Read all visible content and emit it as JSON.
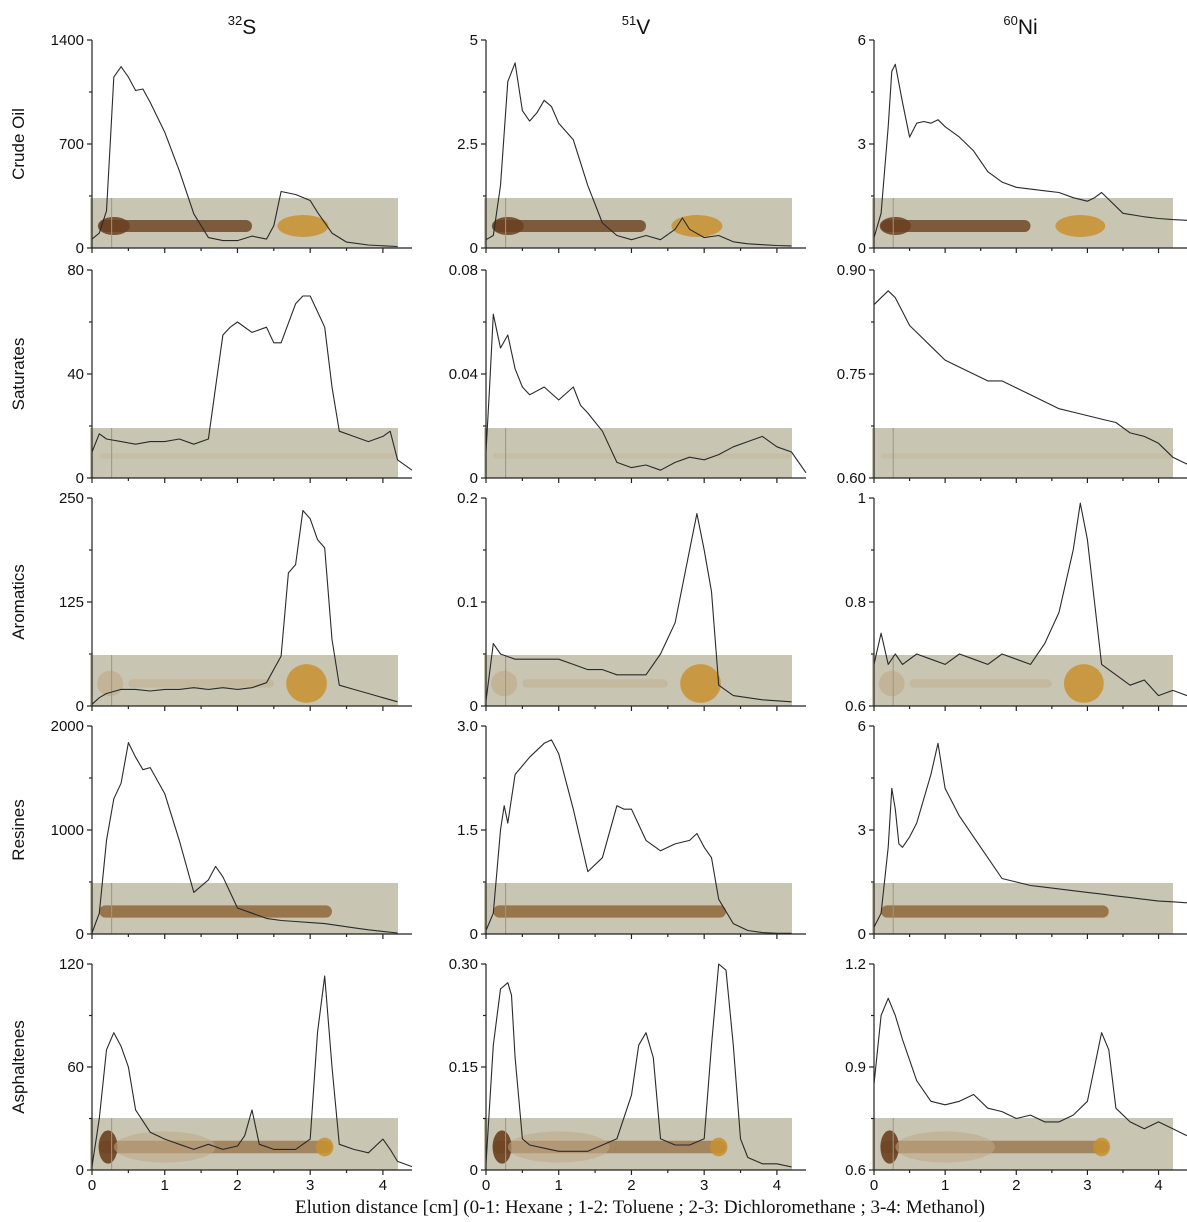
{
  "chart_data": {
    "type": "line",
    "layout": "grid 5 rows x 3 columns",
    "columns": [
      {
        "isotope_mass": "32",
        "element": "S"
      },
      {
        "isotope_mass": "51",
        "element": "V"
      },
      {
        "isotope_mass": "60",
        "element": "Ni"
      }
    ],
    "rows": [
      "Crude Oil",
      "Saturates",
      "Aromatics",
      "Resines",
      "Asphaltenes"
    ],
    "xlabel": "Elution distance [cm] (0-1: Hexane ; 1-2: Toluene ; 2-3: Dichloromethane ; 3-4: Methanol)",
    "xlim": [
      0,
      4.4
    ],
    "x_ticks": [
      "0",
      "1",
      "2",
      "3",
      "4"
    ],
    "panels": [
      {
        "row": 0,
        "col": 0,
        "ylim": [
          0,
          1400
        ],
        "y_ticks": [
          "0",
          "700",
          "1400"
        ],
        "x": [
          0,
          0.1,
          0.2,
          0.25,
          0.3,
          0.4,
          0.5,
          0.6,
          0.7,
          0.8,
          1.0,
          1.2,
          1.4,
          1.6,
          1.8,
          2.0,
          2.2,
          2.4,
          2.5,
          2.6,
          2.8,
          3.0,
          3.1,
          3.3,
          3.5,
          3.8,
          4.0,
          4.2
        ],
        "y": [
          60,
          100,
          250,
          700,
          1150,
          1220,
          1150,
          1060,
          1070,
          980,
          780,
          520,
          230,
          70,
          50,
          50,
          80,
          60,
          150,
          380,
          360,
          320,
          240,
          100,
          40,
          20,
          15,
          10
        ]
      },
      {
        "row": 0,
        "col": 1,
        "ylim": [
          0,
          5
        ],
        "y_ticks": [
          "0",
          "2.5",
          "5"
        ],
        "x": [
          0,
          0.1,
          0.2,
          0.3,
          0.4,
          0.5,
          0.6,
          0.7,
          0.8,
          0.9,
          1.0,
          1.2,
          1.4,
          1.6,
          1.8,
          2.0,
          2.2,
          2.4,
          2.6,
          2.7,
          2.8,
          3.0,
          3.2,
          3.4,
          3.6,
          3.8,
          4.0,
          4.2
        ],
        "y": [
          0.2,
          0.3,
          1.5,
          4.0,
          4.45,
          3.3,
          3.05,
          3.25,
          3.55,
          3.4,
          3.0,
          2.6,
          1.5,
          0.6,
          0.3,
          0.2,
          0.3,
          0.2,
          0.45,
          0.72,
          0.45,
          0.25,
          0.3,
          0.15,
          0.1,
          0.08,
          0.06,
          0.05
        ]
      },
      {
        "row": 0,
        "col": 2,
        "ylim": [
          0,
          6
        ],
        "y_ticks": [
          "0",
          "3",
          "6"
        ],
        "x": [
          0,
          0.1,
          0.2,
          0.25,
          0.3,
          0.4,
          0.5,
          0.6,
          0.7,
          0.8,
          0.9,
          1.0,
          1.2,
          1.4,
          1.6,
          1.8,
          2.0,
          2.2,
          2.4,
          2.6,
          2.8,
          3.0,
          3.1,
          3.2,
          3.3,
          3.5,
          3.8,
          4.0,
          4.2,
          4.4
        ],
        "y": [
          0.3,
          1.0,
          3.5,
          5.1,
          5.3,
          4.2,
          3.2,
          3.6,
          3.65,
          3.6,
          3.7,
          3.5,
          3.2,
          2.8,
          2.2,
          1.9,
          1.75,
          1.7,
          1.65,
          1.6,
          1.45,
          1.35,
          1.45,
          1.6,
          1.4,
          1.0,
          0.9,
          0.85,
          0.82,
          0.8
        ]
      },
      {
        "row": 1,
        "col": 0,
        "ylim": [
          0,
          80
        ],
        "y_ticks": [
          "0",
          "40",
          "80"
        ],
        "x": [
          0,
          0.1,
          0.2,
          0.4,
          0.6,
          0.8,
          1.0,
          1.2,
          1.4,
          1.6,
          1.7,
          1.8,
          1.9,
          2.0,
          2.2,
          2.4,
          2.5,
          2.6,
          2.8,
          2.9,
          3.0,
          3.1,
          3.2,
          3.3,
          3.4,
          3.6,
          3.8,
          4.0,
          4.1,
          4.2,
          4.4
        ],
        "y": [
          10,
          17,
          15,
          14,
          13,
          14,
          14,
          15,
          13,
          15,
          35,
          55,
          58,
          60,
          56,
          58,
          52,
          52,
          67,
          70,
          70,
          64,
          58,
          35,
          18,
          16,
          14,
          16,
          18,
          7,
          3
        ]
      },
      {
        "row": 1,
        "col": 1,
        "ylim": [
          0,
          0.08
        ],
        "y_ticks": [
          "0",
          "0.04",
          "0.08"
        ],
        "x": [
          0,
          0.05,
          0.1,
          0.2,
          0.3,
          0.4,
          0.5,
          0.6,
          0.8,
          1.0,
          1.2,
          1.3,
          1.4,
          1.6,
          1.8,
          2.0,
          2.2,
          2.4,
          2.6,
          2.8,
          3.0,
          3.2,
          3.4,
          3.6,
          3.8,
          4.0,
          4.2,
          4.4
        ],
        "y": [
          0.01,
          0.035,
          0.063,
          0.05,
          0.055,
          0.042,
          0.035,
          0.032,
          0.035,
          0.03,
          0.035,
          0.028,
          0.025,
          0.018,
          0.006,
          0.004,
          0.005,
          0.003,
          0.006,
          0.008,
          0.007,
          0.009,
          0.012,
          0.014,
          0.016,
          0.012,
          0.01,
          0.002
        ]
      },
      {
        "row": 1,
        "col": 2,
        "ylim": [
          0.6,
          0.9
        ],
        "y_ticks": [
          "0.60",
          "0.75",
          "0.90"
        ],
        "x": [
          0,
          0.1,
          0.2,
          0.3,
          0.4,
          0.5,
          0.6,
          0.8,
          1.0,
          1.2,
          1.4,
          1.6,
          1.8,
          2.0,
          2.2,
          2.4,
          2.6,
          2.8,
          3.0,
          3.2,
          3.4,
          3.6,
          3.8,
          4.0,
          4.2,
          4.4
        ],
        "y": [
          0.85,
          0.86,
          0.87,
          0.86,
          0.84,
          0.82,
          0.81,
          0.79,
          0.77,
          0.76,
          0.75,
          0.74,
          0.74,
          0.73,
          0.72,
          0.71,
          0.7,
          0.695,
          0.69,
          0.685,
          0.68,
          0.665,
          0.66,
          0.65,
          0.63,
          0.62
        ]
      },
      {
        "row": 2,
        "col": 0,
        "ylim": [
          0,
          250
        ],
        "y_ticks": [
          "0",
          "125",
          "250"
        ],
        "x": [
          0,
          0.1,
          0.2,
          0.4,
          0.6,
          0.8,
          1.0,
          1.2,
          1.4,
          1.6,
          1.8,
          2.0,
          2.2,
          2.4,
          2.6,
          2.7,
          2.8,
          2.9,
          3.0,
          3.1,
          3.2,
          3.3,
          3.4,
          3.6,
          3.8,
          4.0,
          4.2
        ],
        "y": [
          2,
          10,
          15,
          20,
          20,
          18,
          20,
          20,
          22,
          20,
          22,
          20,
          22,
          28,
          60,
          160,
          170,
          235,
          225,
          200,
          190,
          80,
          25,
          20,
          15,
          10,
          5
        ]
      },
      {
        "row": 2,
        "col": 1,
        "ylim": [
          0,
          0.2
        ],
        "y_ticks": [
          "0",
          "0.1",
          "0.2"
        ],
        "x": [
          0,
          0.1,
          0.2,
          0.4,
          0.6,
          0.8,
          1.0,
          1.2,
          1.4,
          1.6,
          1.8,
          2.0,
          2.2,
          2.4,
          2.6,
          2.8,
          2.9,
          3.0,
          3.1,
          3.2,
          3.4,
          3.6,
          3.8,
          4.0,
          4.2
        ],
        "y": [
          0.005,
          0.06,
          0.05,
          0.045,
          0.045,
          0.045,
          0.045,
          0.04,
          0.035,
          0.035,
          0.03,
          0.03,
          0.03,
          0.05,
          0.08,
          0.15,
          0.185,
          0.15,
          0.11,
          0.02,
          0.01,
          0.008,
          0.006,
          0.005,
          0.004
        ]
      },
      {
        "row": 2,
        "col": 2,
        "ylim": [
          0.6,
          1.0
        ],
        "y_ticks": [
          "0.6",
          "0.8",
          "1"
        ],
        "x": [
          0,
          0.1,
          0.2,
          0.3,
          0.4,
          0.6,
          0.8,
          1.0,
          1.2,
          1.4,
          1.6,
          1.8,
          2.0,
          2.2,
          2.4,
          2.6,
          2.8,
          2.9,
          3.0,
          3.1,
          3.2,
          3.4,
          3.6,
          3.8,
          4.0,
          4.2,
          4.4
        ],
        "y": [
          0.68,
          0.74,
          0.68,
          0.7,
          0.68,
          0.7,
          0.69,
          0.68,
          0.7,
          0.69,
          0.68,
          0.7,
          0.69,
          0.68,
          0.72,
          0.78,
          0.9,
          0.99,
          0.92,
          0.8,
          0.68,
          0.66,
          0.64,
          0.65,
          0.62,
          0.63,
          0.62
        ]
      },
      {
        "row": 3,
        "col": 0,
        "ylim": [
          0,
          2000
        ],
        "y_ticks": [
          "0",
          "1000",
          "2000"
        ],
        "x": [
          0,
          0.1,
          0.2,
          0.3,
          0.4,
          0.5,
          0.6,
          0.7,
          0.8,
          1.0,
          1.2,
          1.4,
          1.6,
          1.7,
          1.8,
          2.0,
          2.2,
          2.4,
          2.6,
          2.8,
          3.0,
          3.2,
          3.4,
          3.6,
          3.8,
          4.0,
          4.2
        ],
        "y": [
          10,
          200,
          900,
          1300,
          1450,
          1840,
          1700,
          1580,
          1600,
          1350,
          900,
          400,
          520,
          650,
          550,
          250,
          200,
          150,
          130,
          120,
          110,
          100,
          80,
          60,
          40,
          25,
          10
        ]
      },
      {
        "row": 3,
        "col": 1,
        "ylim": [
          0,
          3
        ],
        "y_ticks": [
          "0",
          "1.5",
          "3.0"
        ],
        "x": [
          0,
          0.1,
          0.2,
          0.25,
          0.3,
          0.4,
          0.6,
          0.8,
          0.9,
          1.0,
          1.2,
          1.4,
          1.6,
          1.8,
          1.9,
          2.0,
          2.2,
          2.4,
          2.6,
          2.8,
          2.9,
          3.0,
          3.1,
          3.2,
          3.4,
          3.6,
          3.8,
          4.0,
          4.2
        ],
        "y": [
          0.05,
          0.3,
          1.5,
          1.85,
          1.6,
          2.3,
          2.55,
          2.75,
          2.8,
          2.6,
          1.8,
          0.9,
          1.1,
          1.85,
          1.8,
          1.8,
          1.35,
          1.2,
          1.3,
          1.35,
          1.45,
          1.25,
          1.1,
          0.5,
          0.15,
          0.05,
          0.02,
          0.01,
          0.01
        ]
      },
      {
        "row": 3,
        "col": 2,
        "ylim": [
          0,
          6
        ],
        "y_ticks": [
          "0",
          "3",
          "6"
        ],
        "x": [
          0,
          0.1,
          0.2,
          0.25,
          0.3,
          0.35,
          0.4,
          0.5,
          0.6,
          0.8,
          0.9,
          1.0,
          1.2,
          1.4,
          1.6,
          1.8,
          2.0,
          2.2,
          2.4,
          2.6,
          2.8,
          3.0,
          3.2,
          3.4,
          3.6,
          3.8,
          4.0,
          4.2,
          4.4
        ],
        "y": [
          0.2,
          0.6,
          2.5,
          4.2,
          3.6,
          2.6,
          2.5,
          2.8,
          3.2,
          4.6,
          5.5,
          4.2,
          3.4,
          2.8,
          2.2,
          1.6,
          1.5,
          1.4,
          1.35,
          1.3,
          1.25,
          1.2,
          1.15,
          1.1,
          1.05,
          1.0,
          0.95,
          0.93,
          0.9
        ]
      },
      {
        "row": 4,
        "col": 0,
        "ylim": [
          0,
          120
        ],
        "y_ticks": [
          "0",
          "60",
          "120"
        ],
        "x": [
          0,
          0.1,
          0.2,
          0.3,
          0.4,
          0.5,
          0.6,
          0.8,
          1.0,
          1.2,
          1.4,
          1.6,
          1.8,
          2.0,
          2.1,
          2.2,
          2.3,
          2.5,
          2.8,
          3.0,
          3.1,
          3.2,
          3.3,
          3.4,
          3.6,
          3.8,
          4.0,
          4.1,
          4.2,
          4.4
        ],
        "y": [
          2,
          30,
          70,
          80,
          72,
          60,
          35,
          22,
          18,
          15,
          12,
          15,
          12,
          14,
          20,
          35,
          15,
          12,
          12,
          18,
          80,
          113,
          60,
          15,
          12,
          10,
          18,
          12,
          5,
          2
        ]
      },
      {
        "row": 4,
        "col": 1,
        "ylim": [
          0,
          0.33
        ],
        "y_ticks": [
          "0",
          "0.15",
          "0.30"
        ],
        "x": [
          0,
          0.1,
          0.2,
          0.3,
          0.35,
          0.4,
          0.5,
          0.6,
          0.8,
          1.0,
          1.2,
          1.4,
          1.6,
          1.8,
          2.0,
          2.1,
          2.2,
          2.3,
          2.4,
          2.6,
          2.8,
          3.0,
          3.1,
          3.2,
          3.3,
          3.4,
          3.5,
          3.6,
          3.8,
          4.0,
          4.2
        ],
        "y": [
          0.01,
          0.2,
          0.29,
          0.3,
          0.28,
          0.18,
          0.05,
          0.04,
          0.035,
          0.03,
          0.03,
          0.03,
          0.04,
          0.05,
          0.12,
          0.2,
          0.22,
          0.18,
          0.05,
          0.04,
          0.04,
          0.05,
          0.2,
          0.33,
          0.32,
          0.2,
          0.05,
          0.02,
          0.01,
          0.01,
          0.005
        ]
      },
      {
        "row": 4,
        "col": 2,
        "ylim": [
          0.6,
          1.2
        ],
        "y_ticks": [
          "0.6",
          "0.9",
          "1.2"
        ],
        "x": [
          0,
          0.1,
          0.2,
          0.3,
          0.4,
          0.5,
          0.6,
          0.8,
          1.0,
          1.2,
          1.4,
          1.6,
          1.8,
          2.0,
          2.2,
          2.4,
          2.6,
          2.8,
          3.0,
          3.1,
          3.2,
          3.3,
          3.4,
          3.6,
          3.8,
          4.0,
          4.2,
          4.4
        ],
        "y": [
          0.85,
          1.05,
          1.1,
          1.05,
          0.98,
          0.92,
          0.86,
          0.8,
          0.79,
          0.8,
          0.82,
          0.78,
          0.77,
          0.75,
          0.76,
          0.74,
          0.74,
          0.76,
          0.8,
          0.9,
          1.0,
          0.95,
          0.78,
          0.74,
          0.72,
          0.74,
          0.72,
          0.7
        ]
      }
    ],
    "plate_colors": {
      "background": "#c5c2ae",
      "dark_spot": "#6a3f1e",
      "mid_band": "#8a5a2a",
      "amber_spot": "#c8902e",
      "light_band": "#bfa887"
    }
  }
}
